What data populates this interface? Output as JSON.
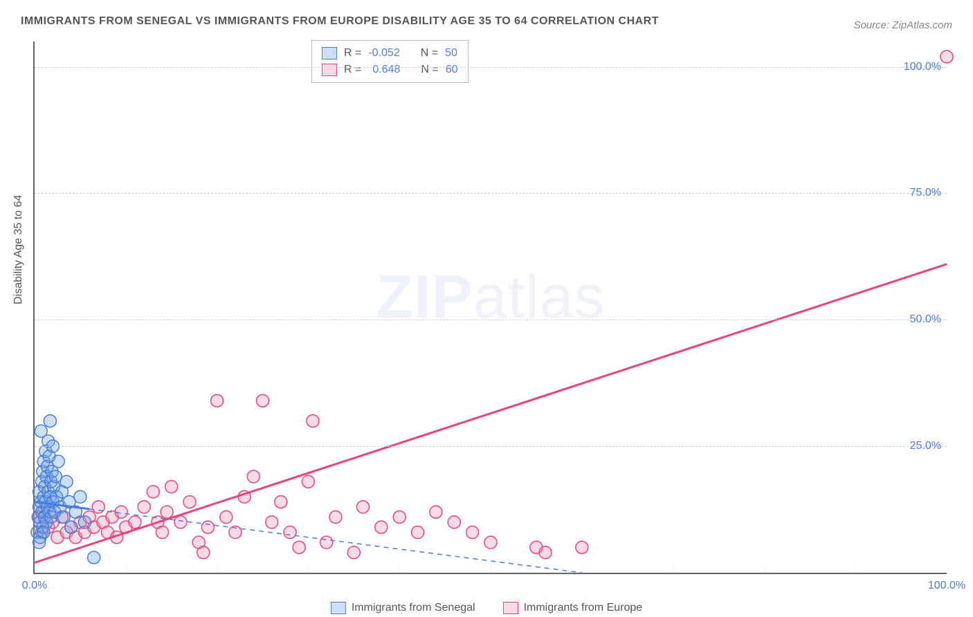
{
  "title": "IMMIGRANTS FROM SENEGAL VS IMMIGRANTS FROM EUROPE DISABILITY AGE 35 TO 64 CORRELATION CHART",
  "title_fontsize": 16,
  "source": "Source: ZipAtlas.com",
  "source_fontsize": 15,
  "ylabel": "Disability Age 35 to 64",
  "watermark": "ZIPatlas",
  "plot": {
    "xlim": [
      0,
      100
    ],
    "ylim": [
      0,
      105
    ],
    "ytick_step": 25,
    "ytick_suffix": "%",
    "xtick_values": [
      0,
      100
    ],
    "xtick_suffix": "%",
    "grid_color": "#d0d0d0",
    "background_color": "#ffffff",
    "axis_label_color": "#4a7dd8"
  },
  "series": {
    "senegal": {
      "label": "Immigrants from Senegal",
      "color": "#6ea3e8",
      "fill": "rgba(110,163,232,0.35)",
      "stroke": "#4a7dd8",
      "R": "-0.052",
      "N": "50",
      "regression": {
        "x1": 0,
        "y1": 14,
        "x2": 60,
        "y2": 0,
        "dashed_from_x": 6,
        "solid_width": 3
      },
      "points": [
        [
          0.3,
          8
        ],
        [
          0.4,
          11
        ],
        [
          0.5,
          13
        ],
        [
          0.5,
          16
        ],
        [
          0.6,
          7
        ],
        [
          0.6,
          10
        ],
        [
          0.7,
          14
        ],
        [
          0.8,
          18
        ],
        [
          0.8,
          12
        ],
        [
          0.9,
          20
        ],
        [
          0.9,
          9
        ],
        [
          1.0,
          15
        ],
        [
          1.0,
          22
        ],
        [
          1.1,
          17
        ],
        [
          1.1,
          11
        ],
        [
          1.2,
          24
        ],
        [
          1.2,
          14
        ],
        [
          1.3,
          19
        ],
        [
          1.3,
          10
        ],
        [
          1.4,
          21
        ],
        [
          1.4,
          13
        ],
        [
          1.5,
          26
        ],
        [
          1.5,
          16
        ],
        [
          1.6,
          12
        ],
        [
          1.6,
          23
        ],
        [
          1.7,
          30
        ],
        [
          1.7,
          15
        ],
        [
          1.8,
          18
        ],
        [
          1.8,
          11
        ],
        [
          1.9,
          20
        ],
        [
          2.0,
          25
        ],
        [
          2.0,
          14
        ],
        [
          2.1,
          17
        ],
        [
          2.2,
          12
        ],
        [
          2.3,
          19
        ],
        [
          2.4,
          15
        ],
        [
          2.6,
          22
        ],
        [
          2.8,
          13
        ],
        [
          3.0,
          16
        ],
        [
          3.2,
          11
        ],
        [
          3.5,
          18
        ],
        [
          3.8,
          14
        ],
        [
          4.0,
          9
        ],
        [
          4.5,
          12
        ],
        [
          5.0,
          15
        ],
        [
          5.5,
          10
        ],
        [
          6.5,
          3
        ],
        [
          0.7,
          28
        ],
        [
          1.0,
          8
        ],
        [
          0.5,
          6
        ]
      ]
    },
    "europe": {
      "label": "Immigrants from Europe",
      "color": "#f194b4",
      "fill": "rgba(241,148,180,0.35)",
      "stroke": "#e8437a",
      "R": "0.648",
      "N": "60",
      "regression": {
        "x1": 0,
        "y1": 2,
        "x2": 100,
        "y2": 61,
        "solid_width": 3
      },
      "points": [
        [
          0.5,
          11
        ],
        [
          0.8,
          8
        ],
        [
          1.0,
          12
        ],
        [
          1.5,
          9
        ],
        [
          2.0,
          10
        ],
        [
          2.5,
          7
        ],
        [
          3.0,
          11
        ],
        [
          3.5,
          8
        ],
        [
          4.0,
          9
        ],
        [
          4.5,
          7
        ],
        [
          5.0,
          10
        ],
        [
          5.5,
          8
        ],
        [
          6.0,
          11
        ],
        [
          6.5,
          9
        ],
        [
          7.0,
          13
        ],
        [
          7.5,
          10
        ],
        [
          8.0,
          8
        ],
        [
          8.5,
          11
        ],
        [
          9.0,
          7
        ],
        [
          9.5,
          12
        ],
        [
          10.0,
          9
        ],
        [
          11.0,
          10
        ],
        [
          12.0,
          13
        ],
        [
          13.0,
          16
        ],
        [
          13.5,
          10
        ],
        [
          14.0,
          8
        ],
        [
          14.5,
          12
        ],
        [
          15.0,
          17
        ],
        [
          16.0,
          10
        ],
        [
          17.0,
          14
        ],
        [
          18.0,
          6
        ],
        [
          18.5,
          4
        ],
        [
          19.0,
          9
        ],
        [
          20.0,
          34
        ],
        [
          21.0,
          11
        ],
        [
          22.0,
          8
        ],
        [
          23.0,
          15
        ],
        [
          24.0,
          19
        ],
        [
          25.0,
          34
        ],
        [
          26.0,
          10
        ],
        [
          27.0,
          14
        ],
        [
          28.0,
          8
        ],
        [
          29.0,
          5
        ],
        [
          30.0,
          18
        ],
        [
          30.5,
          30
        ],
        [
          32.0,
          6
        ],
        [
          33.0,
          11
        ],
        [
          35.0,
          4
        ],
        [
          36.0,
          13
        ],
        [
          38.0,
          9
        ],
        [
          40.0,
          11
        ],
        [
          42.0,
          8
        ],
        [
          44.0,
          12
        ],
        [
          46.0,
          10
        ],
        [
          48.0,
          8
        ],
        [
          50.0,
          6
        ],
        [
          55.0,
          5
        ],
        [
          56.0,
          4
        ],
        [
          60.0,
          5
        ],
        [
          100.0,
          102
        ]
      ]
    }
  },
  "legend_top": {
    "r_label": "R =",
    "n_label": "N ="
  },
  "style": {
    "marker_radius": 9,
    "marker_stroke_width": 1.5
  }
}
